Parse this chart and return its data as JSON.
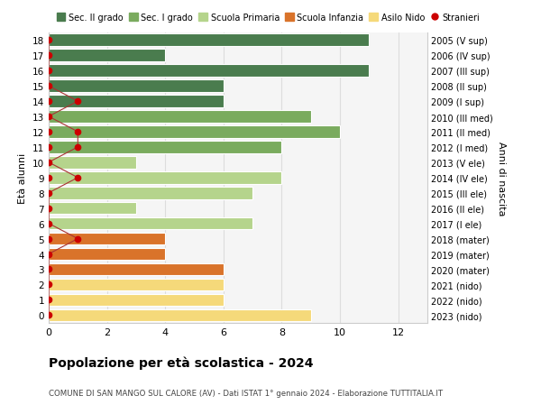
{
  "ages": [
    18,
    17,
    16,
    15,
    14,
    13,
    12,
    11,
    10,
    9,
    8,
    7,
    6,
    5,
    4,
    3,
    2,
    1,
    0
  ],
  "right_labels": [
    "2005 (V sup)",
    "2006 (IV sup)",
    "2007 (III sup)",
    "2008 (II sup)",
    "2009 (I sup)",
    "2010 (III med)",
    "2011 (II med)",
    "2012 (I med)",
    "2013 (V ele)",
    "2014 (IV ele)",
    "2015 (III ele)",
    "2016 (II ele)",
    "2017 (I ele)",
    "2018 (mater)",
    "2019 (mater)",
    "2020 (mater)",
    "2021 (nido)",
    "2022 (nido)",
    "2023 (nido)"
  ],
  "bar_values": [
    11,
    4,
    11,
    6,
    6,
    9,
    10,
    8,
    3,
    8,
    7,
    3,
    7,
    4,
    4,
    6,
    6,
    6,
    9
  ],
  "bar_colors": [
    "#4a7c4e",
    "#4a7c4e",
    "#4a7c4e",
    "#4a7c4e",
    "#4a7c4e",
    "#7aab5e",
    "#7aab5e",
    "#7aab5e",
    "#b5d48c",
    "#b5d48c",
    "#b5d48c",
    "#b5d48c",
    "#b5d48c",
    "#d9732a",
    "#d9732a",
    "#d9732a",
    "#f5d97a",
    "#f5d97a",
    "#f5d97a"
  ],
  "stranieri_values": [
    0,
    0,
    0,
    0,
    1,
    0,
    1,
    1,
    0,
    1,
    0,
    0,
    0,
    1,
    0,
    0,
    0,
    0,
    0
  ],
  "legend_labels": [
    "Sec. II grado",
    "Sec. I grado",
    "Scuola Primaria",
    "Scuola Infanzia",
    "Asilo Nido",
    "Stranieri"
  ],
  "legend_colors": [
    "#4a7c4e",
    "#7aab5e",
    "#b5d48c",
    "#d9732a",
    "#f5d97a",
    "#cc0000"
  ],
  "title": "Popolazione per età scolastica - 2024",
  "subtitle": "COMUNE DI SAN MANGO SUL CALORE (AV) - Dati ISTAT 1° gennaio 2024 - Elaborazione TUTTITALIA.IT",
  "xlabel_right": "Anni di nascita",
  "ylabel": "Età alunni",
  "xlim": [
    0,
    13
  ],
  "ylim": [
    -0.5,
    18.5
  ],
  "bg_color": "#f5f5f5",
  "fig_color": "#ffffff",
  "grid_color": "#dddddd",
  "bar_edge_color": "#ffffff",
  "stranieri_dot_color": "#cc0000",
  "stranieri_line_color": "#aa3333"
}
